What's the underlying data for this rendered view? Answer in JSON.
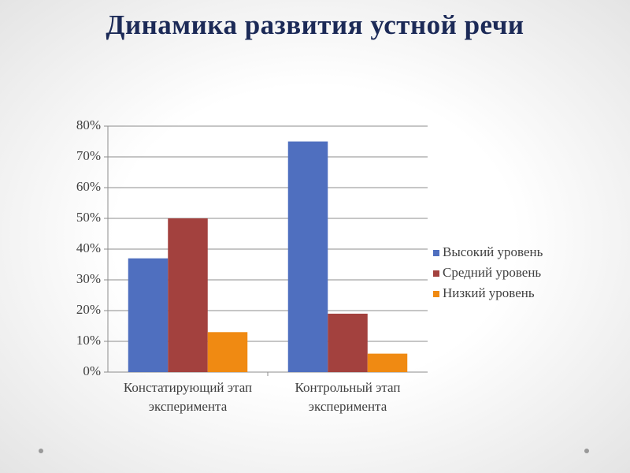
{
  "chart_data": {
    "type": "bar",
    "title": "Динамика развития устной речи",
    "categories": [
      "Констатирующий этап эксперимента",
      "Контрольный этап эксперимента"
    ],
    "series": [
      {
        "name": "Высокий уровень",
        "color": "#4f6fbf",
        "values": [
          37,
          75
        ]
      },
      {
        "name": "Средний уровень",
        "color": "#a3413e",
        "values": [
          50,
          19
        ]
      },
      {
        "name": "Низкий уровень",
        "color": "#f08a12",
        "values": [
          13,
          6
        ]
      }
    ],
    "ylim": [
      0,
      80
    ],
    "yticks": [
      {
        "value": 0,
        "label": "0%"
      },
      {
        "value": 10,
        "label": "10%"
      },
      {
        "value": 20,
        "label": "20%"
      },
      {
        "value": 30,
        "label": "30%"
      },
      {
        "value": 40,
        "label": "40%"
      },
      {
        "value": 50,
        "label": "50%"
      },
      {
        "value": 60,
        "label": "60%"
      },
      {
        "value": 70,
        "label": "70%"
      },
      {
        "value": 80,
        "label": "80%"
      }
    ],
    "grid": true,
    "legend": "right"
  }
}
